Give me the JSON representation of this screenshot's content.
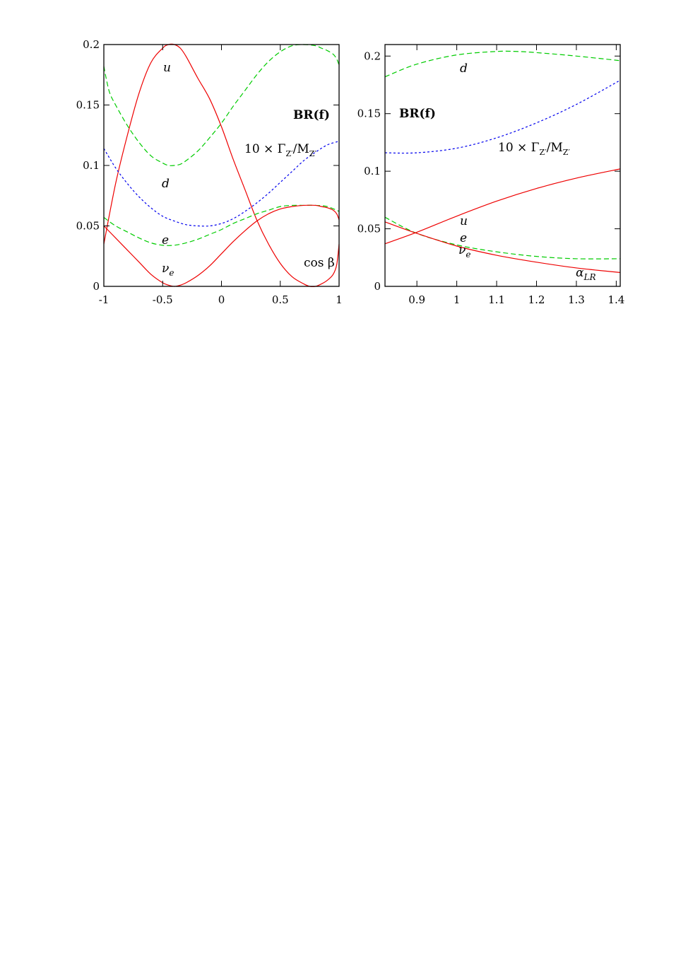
{
  "colors": {
    "red": "#ee0000",
    "green": "#00cc00",
    "blue": "#0000ee"
  },
  "chart_data": [
    {
      "type": "line",
      "xlim": [
        -1,
        1
      ],
      "ylim": [
        0,
        0.2
      ],
      "xticks": [
        "-1",
        "-0.5",
        "0",
        "0.5",
        "1"
      ],
      "yticks": [
        "0",
        "0.05",
        "0.1",
        "0.15",
        "0.2"
      ],
      "annotations": {
        "title": "BR(f)",
        "width_label": "10 × Γ",
        "width_sub1": "Z′",
        "width_mid": "/M",
        "width_sub2": "Z′",
        "xvar": "cos β",
        "u": "u",
        "d": "d",
        "e": "e",
        "nu": "ν",
        "nu_sub": "e"
      },
      "series": [
        {
          "name": "u",
          "color": "red",
          "dash": "solid",
          "x": [
            -1,
            -0.9,
            -0.8,
            -0.7,
            -0.6,
            -0.5,
            -0.45,
            -0.4,
            -0.35,
            -0.3,
            -0.2,
            -0.1,
            0,
            0.1,
            0.2,
            0.3,
            0.4,
            0.5,
            0.6,
            0.7,
            0.75,
            0.8,
            0.85,
            0.9,
            0.95,
            0.98,
            1
          ],
          "y": [
            0.035,
            0.085,
            0.125,
            0.16,
            0.185,
            0.197,
            0.2,
            0.2,
            0.197,
            0.19,
            0.172,
            0.155,
            0.132,
            0.105,
            0.08,
            0.055,
            0.035,
            0.019,
            0.008,
            0.002,
            0.0,
            0.0,
            0.002,
            0.005,
            0.01,
            0.018,
            0.035
          ]
        },
        {
          "name": "d",
          "color": "green",
          "dash": "dashed",
          "x": [
            -1,
            -0.98,
            -0.95,
            -0.9,
            -0.8,
            -0.7,
            -0.6,
            -0.5,
            -0.45,
            -0.4,
            -0.35,
            -0.3,
            -0.2,
            -0.1,
            0,
            0.1,
            0.2,
            0.3,
            0.4,
            0.5,
            0.6,
            0.7,
            0.8,
            0.85,
            0.9,
            0.95,
            0.98,
            1
          ],
          "y": [
            0.182,
            0.172,
            0.16,
            0.15,
            0.133,
            0.119,
            0.108,
            0.102,
            0.1,
            0.1,
            0.101,
            0.104,
            0.112,
            0.123,
            0.135,
            0.149,
            0.162,
            0.175,
            0.186,
            0.194,
            0.199,
            0.2,
            0.199,
            0.197,
            0.195,
            0.192,
            0.188,
            0.183
          ]
        },
        {
          "name": "e",
          "color": "green",
          "dash": "dashed",
          "x": [
            -1,
            -0.9,
            -0.8,
            -0.7,
            -0.6,
            -0.5,
            -0.4,
            -0.3,
            -0.2,
            -0.1,
            0,
            0.1,
            0.2,
            0.3,
            0.4,
            0.5,
            0.6,
            0.7,
            0.8,
            0.9,
            1
          ],
          "y": [
            0.057,
            0.05,
            0.045,
            0.04,
            0.036,
            0.034,
            0.034,
            0.036,
            0.039,
            0.043,
            0.047,
            0.052,
            0.056,
            0.06,
            0.063,
            0.066,
            0.067,
            0.067,
            0.067,
            0.066,
            0.062
          ]
        },
        {
          "name": "ν_e",
          "color": "red",
          "dash": "solid",
          "x": [
            -1,
            -0.9,
            -0.8,
            -0.7,
            -0.6,
            -0.5,
            -0.45,
            -0.4,
            -0.35,
            -0.3,
            -0.2,
            -0.1,
            0,
            0.1,
            0.2,
            0.3,
            0.4,
            0.5,
            0.6,
            0.7,
            0.8,
            0.85,
            0.9,
            0.95,
            0.98,
            1
          ],
          "y": [
            0.05,
            0.04,
            0.03,
            0.02,
            0.01,
            0.003,
            0.001,
            0.0,
            0.001,
            0.003,
            0.009,
            0.017,
            0.027,
            0.037,
            0.046,
            0.054,
            0.06,
            0.064,
            0.066,
            0.067,
            0.067,
            0.066,
            0.065,
            0.063,
            0.06,
            0.055
          ]
        },
        {
          "name": "10 × Γ_Z′/M_Z′",
          "color": "blue",
          "dash": "dotted",
          "x": [
            -1,
            -0.9,
            -0.8,
            -0.7,
            -0.6,
            -0.5,
            -0.4,
            -0.3,
            -0.2,
            -0.1,
            0,
            0.1,
            0.2,
            0.3,
            0.4,
            0.5,
            0.6,
            0.7,
            0.8,
            0.9,
            1
          ],
          "y": [
            0.114,
            0.098,
            0.085,
            0.074,
            0.065,
            0.058,
            0.054,
            0.051,
            0.05,
            0.05,
            0.052,
            0.056,
            0.062,
            0.069,
            0.077,
            0.086,
            0.095,
            0.104,
            0.111,
            0.117,
            0.12
          ]
        }
      ]
    },
    {
      "type": "line",
      "xlim": [
        0.82,
        1.41
      ],
      "ylim": [
        0,
        0.21
      ],
      "xticks": [
        "0.9",
        "1",
        "1.1",
        "1.2",
        "1.3",
        "1.4"
      ],
      "xtick_values": [
        0.9,
        1.0,
        1.1,
        1.2,
        1.3,
        1.4
      ],
      "yticks": [
        "0",
        "0.05",
        "0.1",
        "0.15",
        "0.2"
      ],
      "annotations": {
        "title": "BR(f)",
        "width_label": "10 × Γ",
        "width_sub1": "Z′",
        "width_mid": "/M",
        "width_sub2": "Z′",
        "xvar": "α",
        "xvar_sub": "LR",
        "u": "u",
        "d": "d",
        "e": "e",
        "nu": "ν",
        "nu_sub": "e"
      },
      "series": [
        {
          "name": "d",
          "color": "green",
          "dash": "dashed",
          "x": [
            0.82,
            0.9,
            1.0,
            1.1,
            1.15,
            1.2,
            1.3,
            1.41
          ],
          "y": [
            0.182,
            0.193,
            0.201,
            0.204,
            0.204,
            0.203,
            0.2,
            0.196
          ]
        },
        {
          "name": "10 × Γ_Z′/M_Z′",
          "color": "blue",
          "dash": "dotted",
          "x": [
            0.82,
            0.9,
            1.0,
            1.1,
            1.2,
            1.3,
            1.41
          ],
          "y": [
            0.116,
            0.116,
            0.12,
            0.129,
            0.142,
            0.158,
            0.179
          ]
        },
        {
          "name": "u",
          "color": "red",
          "dash": "solid",
          "x": [
            0.82,
            0.9,
            1.0,
            1.1,
            1.2,
            1.3,
            1.41
          ],
          "y": [
            0.037,
            0.047,
            0.061,
            0.074,
            0.085,
            0.094,
            0.102
          ]
        },
        {
          "name": "e",
          "color": "green",
          "dash": "dashed",
          "x": [
            0.82,
            0.9,
            1.0,
            1.1,
            1.2,
            1.3,
            1.41
          ],
          "y": [
            0.06,
            0.046,
            0.036,
            0.03,
            0.026,
            0.024,
            0.024
          ]
        },
        {
          "name": "ν_e",
          "color": "red",
          "dash": "solid",
          "x": [
            0.82,
            0.9,
            1.0,
            1.1,
            1.2,
            1.3,
            1.41
          ],
          "y": [
            0.056,
            0.046,
            0.035,
            0.027,
            0.021,
            0.016,
            0.012
          ]
        }
      ]
    }
  ]
}
